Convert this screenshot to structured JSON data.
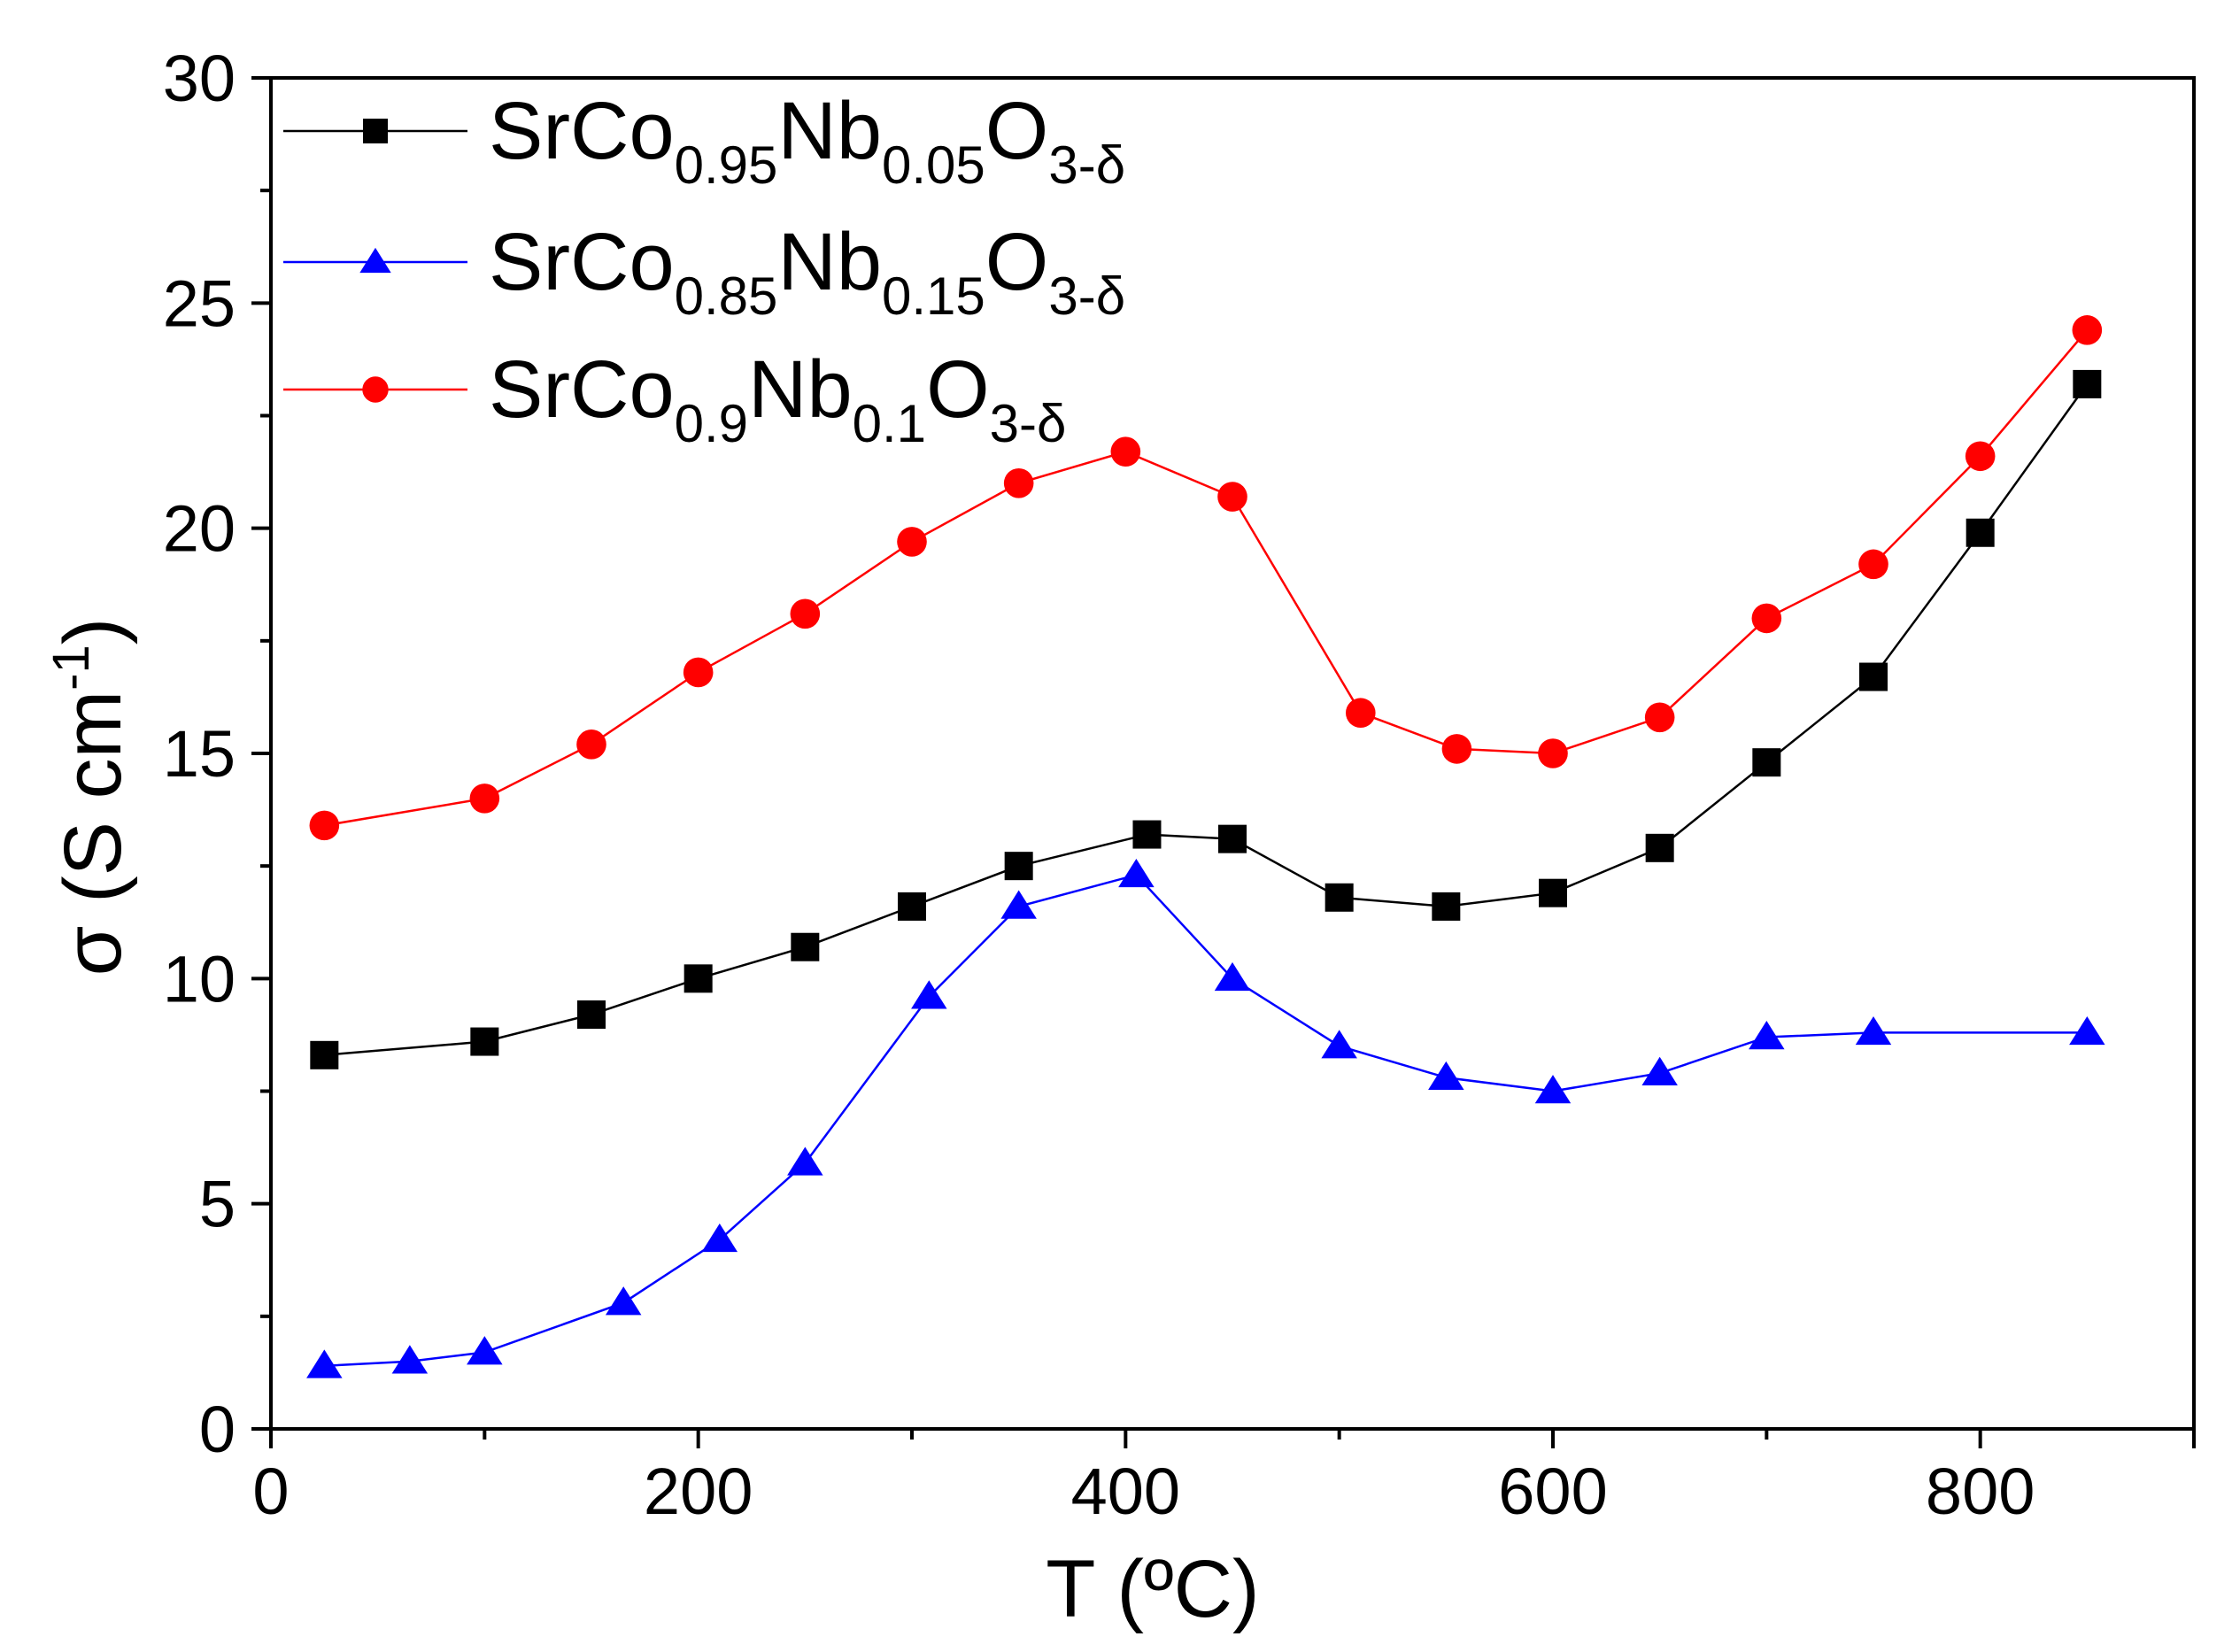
{
  "chart_data": {
    "type": "line",
    "title": "",
    "xlabel": "T (ºC)",
    "ylabel_base": "σ (S cm",
    "ylabel_sup": "-1",
    "ylabel_end": ")",
    "xlim": [
      0,
      900
    ],
    "ylim": [
      0,
      30
    ],
    "x_ticks": [
      0,
      200,
      400,
      600,
      800
    ],
    "x_tick_labels": [
      "0",
      "200",
      "400",
      "600",
      "800"
    ],
    "y_ticks": [
      0,
      5,
      10,
      15,
      20,
      25,
      30
    ],
    "y_tick_labels": [
      "0",
      "5",
      "10",
      "15",
      "20",
      "25",
      "30"
    ],
    "grid": false,
    "legend_position": "top-left",
    "series": [
      {
        "name": "SrCo0.95Nb0.05O3-δ",
        "legend_parts": [
          {
            "t": "SrCo",
            "s": "base"
          },
          {
            "t": "0.95",
            "s": "sub"
          },
          {
            "t": "Nb",
            "s": "base"
          },
          {
            "t": "0.05",
            "s": "sub"
          },
          {
            "t": "O",
            "s": "base"
          },
          {
            "t": "3-δ",
            "s": "sub"
          }
        ],
        "color": "#000000",
        "marker": "square",
        "x": [
          25,
          100,
          150,
          200,
          250,
          300,
          350,
          410,
          450,
          500,
          550,
          600,
          650,
          700,
          750,
          800,
          850
        ],
        "y": [
          8.3,
          8.6,
          9.2,
          10.0,
          10.7,
          11.6,
          12.5,
          13.2,
          13.1,
          11.8,
          11.6,
          11.9,
          12.9,
          14.8,
          16.7,
          19.9,
          23.2
        ]
      },
      {
        "name": "SrCo0.85Nb0.15O3-δ",
        "legend_parts": [
          {
            "t": "SrCo",
            "s": "base"
          },
          {
            "t": "0.85",
            "s": "sub"
          },
          {
            "t": "Nb",
            "s": "base"
          },
          {
            "t": "0.15",
            "s": "sub"
          },
          {
            "t": "O",
            "s": "base"
          },
          {
            "t": "3-δ",
            "s": "sub"
          }
        ],
        "color": "#0000ff",
        "marker": "triangle",
        "x": [
          25,
          65,
          100,
          165,
          210,
          250,
          308,
          350,
          405,
          450,
          500,
          550,
          600,
          650,
          700,
          750,
          850
        ],
        "y": [
          1.4,
          1.5,
          1.7,
          2.8,
          4.2,
          5.9,
          9.6,
          11.6,
          12.3,
          10.0,
          8.5,
          7.8,
          7.5,
          7.9,
          8.7,
          8.8,
          8.8
        ]
      },
      {
        "name": "SrCo0.9Nb0.1O3-δ",
        "legend_parts": [
          {
            "t": "SrCo",
            "s": "base"
          },
          {
            "t": "0.9",
            "s": "sub"
          },
          {
            "t": "Nb",
            "s": "base"
          },
          {
            "t": "0.1",
            "s": "sub"
          },
          {
            "t": "O",
            "s": "base"
          },
          {
            "t": "3-δ",
            "s": "sub"
          }
        ],
        "color": "#ff0000",
        "marker": "circle",
        "x": [
          25,
          100,
          150,
          200,
          250,
          300,
          350,
          400,
          450,
          510,
          555,
          600,
          650,
          700,
          750,
          800,
          850
        ],
        "y": [
          13.4,
          14.0,
          15.2,
          16.8,
          18.1,
          19.7,
          21.0,
          21.7,
          20.7,
          15.9,
          15.1,
          15.0,
          15.8,
          18.0,
          19.2,
          21.6,
          24.4
        ]
      }
    ]
  }
}
